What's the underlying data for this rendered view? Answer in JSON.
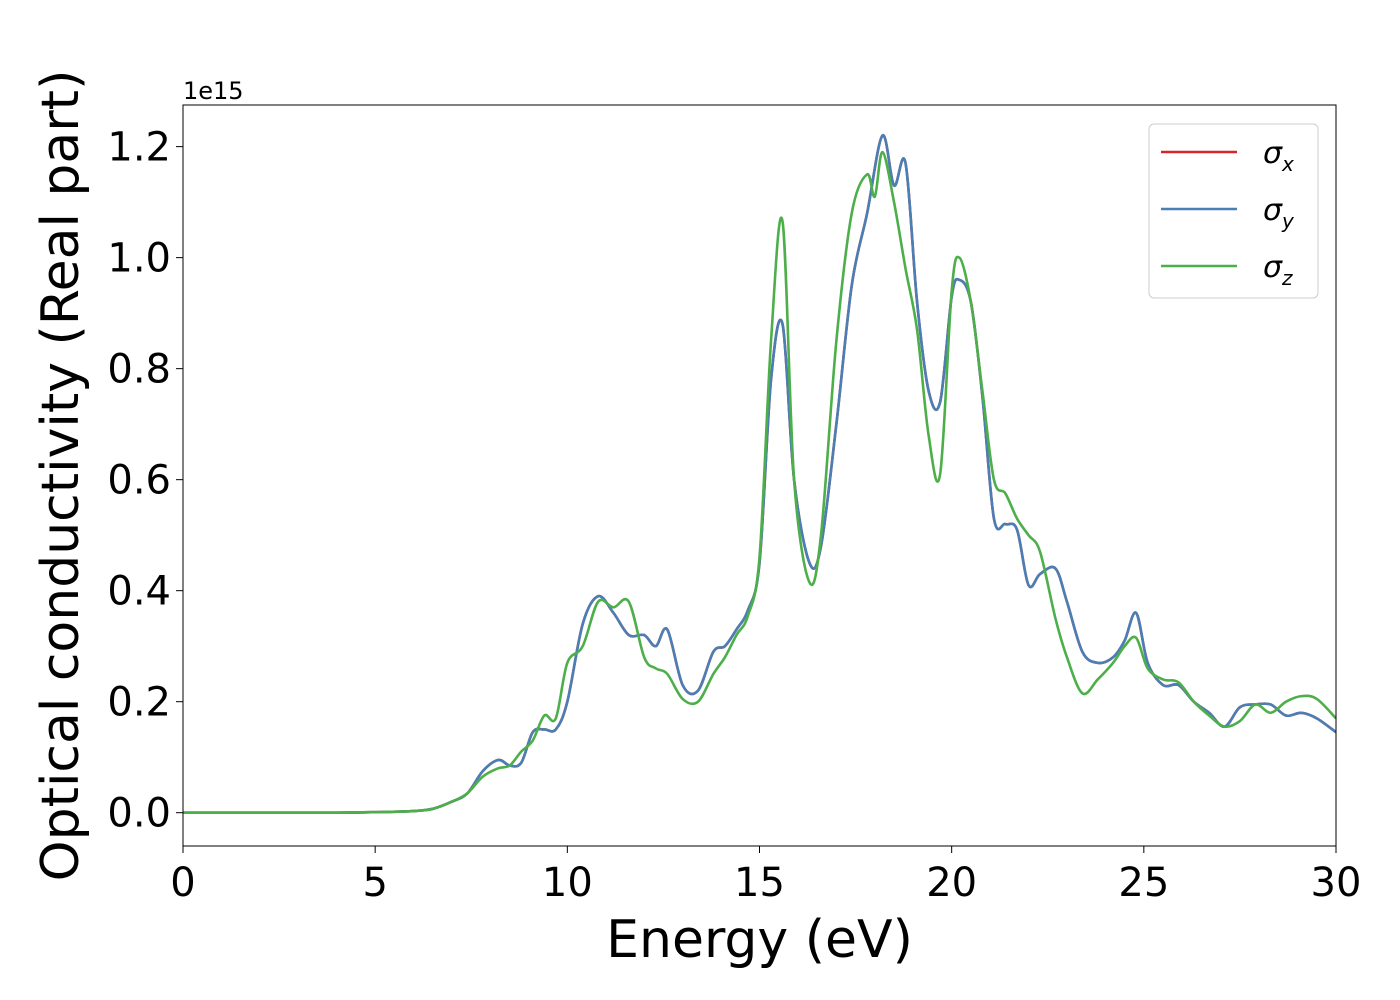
{
  "chart_data": {
    "type": "line",
    "xlabel": "Energy (eV)",
    "ylabel": "Optical conductivity (Real part)",
    "y_offset_label": "1e15",
    "y_scale": 1000000000000000.0,
    "xlim": [
      0,
      30
    ],
    "ylim": [
      -0.06,
      1.275
    ],
    "xticks": [
      0,
      5,
      10,
      15,
      20,
      25,
      30
    ],
    "xtick_labels": [
      "0",
      "5",
      "10",
      "15",
      "20",
      "25",
      "30"
    ],
    "yticks": [
      0.0,
      0.2,
      0.4,
      0.6,
      0.8,
      1.0,
      1.2
    ],
    "ytick_labels": [
      "0.0",
      "0.2",
      "0.4",
      "0.6",
      "0.8",
      "1.0",
      "1.2"
    ],
    "grid": false,
    "legend_position": "top-right",
    "series": [
      {
        "name": "σx",
        "symbol": "σ",
        "subscript": "x",
        "color": "#d62728",
        "x": [
          0,
          2,
          4,
          5,
          6,
          6.5,
          7,
          7.4,
          7.8,
          8.2,
          8.5,
          8.8,
          9.1,
          9.4,
          9.7,
          10,
          10.4,
          10.8,
          11.2,
          11.6,
          12,
          12.3,
          12.6,
          13,
          13.4,
          13.8,
          14.1,
          14.4,
          14.7,
          15,
          15.3,
          15.6,
          15.9,
          16.3,
          16.6,
          17,
          17.4,
          17.8,
          18.2,
          18.5,
          18.8,
          19.1,
          19.4,
          19.7,
          20,
          20.2,
          20.5,
          20.8,
          21.1,
          21.4,
          21.7,
          22,
          22.3,
          22.7,
          23,
          23.4,
          23.8,
          24.2,
          24.5,
          24.8,
          25.1,
          25.5,
          25.9,
          26.3,
          26.7,
          27.1,
          27.5,
          27.9,
          28.3,
          28.7,
          29.1,
          29.5,
          30
        ],
        "values": [
          0,
          0,
          0,
          0.001,
          0.003,
          0.007,
          0.02,
          0.035,
          0.075,
          0.095,
          0.085,
          0.09,
          0.145,
          0.15,
          0.15,
          0.2,
          0.34,
          0.39,
          0.36,
          0.32,
          0.32,
          0.3,
          0.33,
          0.23,
          0.22,
          0.29,
          0.3,
          0.33,
          0.365,
          0.45,
          0.78,
          0.88,
          0.6,
          0.45,
          0.48,
          0.7,
          0.95,
          1.08,
          1.22,
          1.13,
          1.17,
          0.92,
          0.76,
          0.74,
          0.93,
          0.96,
          0.92,
          0.75,
          0.53,
          0.52,
          0.51,
          0.41,
          0.43,
          0.44,
          0.38,
          0.29,
          0.27,
          0.28,
          0.31,
          0.36,
          0.27,
          0.23,
          0.23,
          0.2,
          0.18,
          0.155,
          0.19,
          0.195,
          0.195,
          0.175,
          0.18,
          0.17,
          0.145
        ]
      },
      {
        "name": "σy",
        "symbol": "σ",
        "subscript": "y",
        "color": "#4a7fb5",
        "x": [
          0,
          2,
          4,
          5,
          6,
          6.5,
          7,
          7.4,
          7.8,
          8.2,
          8.5,
          8.8,
          9.1,
          9.4,
          9.7,
          10,
          10.4,
          10.8,
          11.2,
          11.6,
          12,
          12.3,
          12.6,
          13,
          13.4,
          13.8,
          14.1,
          14.4,
          14.7,
          15,
          15.3,
          15.6,
          15.9,
          16.3,
          16.6,
          17,
          17.4,
          17.8,
          18.2,
          18.5,
          18.8,
          19.1,
          19.4,
          19.7,
          20,
          20.2,
          20.5,
          20.8,
          21.1,
          21.4,
          21.7,
          22,
          22.3,
          22.7,
          23,
          23.4,
          23.8,
          24.2,
          24.5,
          24.8,
          25.1,
          25.5,
          25.9,
          26.3,
          26.7,
          27.1,
          27.5,
          27.9,
          28.3,
          28.7,
          29.1,
          29.5,
          30
        ],
        "values": [
          0,
          0,
          0,
          0.001,
          0.003,
          0.007,
          0.02,
          0.035,
          0.075,
          0.095,
          0.085,
          0.09,
          0.145,
          0.15,
          0.15,
          0.2,
          0.34,
          0.39,
          0.36,
          0.32,
          0.32,
          0.3,
          0.33,
          0.23,
          0.22,
          0.29,
          0.3,
          0.33,
          0.365,
          0.45,
          0.78,
          0.88,
          0.6,
          0.45,
          0.48,
          0.7,
          0.95,
          1.08,
          1.22,
          1.13,
          1.17,
          0.92,
          0.76,
          0.74,
          0.93,
          0.96,
          0.92,
          0.75,
          0.53,
          0.52,
          0.51,
          0.41,
          0.43,
          0.44,
          0.38,
          0.29,
          0.27,
          0.28,
          0.31,
          0.36,
          0.27,
          0.23,
          0.23,
          0.2,
          0.18,
          0.155,
          0.19,
          0.195,
          0.195,
          0.175,
          0.18,
          0.17,
          0.145
        ]
      },
      {
        "name": "σz",
        "symbol": "σ",
        "subscript": "z",
        "color": "#4daf4a",
        "x": [
          0,
          2,
          4,
          5,
          6,
          6.5,
          7,
          7.4,
          7.8,
          8.2,
          8.5,
          8.8,
          9.1,
          9.4,
          9.7,
          10,
          10.4,
          10.8,
          11.2,
          11.6,
          12,
          12.3,
          12.6,
          13,
          13.4,
          13.8,
          14.1,
          14.4,
          14.7,
          15,
          15.3,
          15.6,
          15.9,
          16.3,
          16.6,
          17,
          17.4,
          17.8,
          18.0,
          18.2,
          18.5,
          18.8,
          19.1,
          19.4,
          19.7,
          20,
          20.2,
          20.5,
          20.8,
          21.1,
          21.4,
          21.7,
          22,
          22.3,
          22.7,
          23,
          23.4,
          23.8,
          24.2,
          24.5,
          24.8,
          25.1,
          25.5,
          25.9,
          26.3,
          26.7,
          27.1,
          27.5,
          27.9,
          28.3,
          28.7,
          29.1,
          29.5,
          30
        ],
        "values": [
          0,
          0,
          0,
          0.001,
          0.003,
          0.007,
          0.02,
          0.035,
          0.065,
          0.08,
          0.085,
          0.11,
          0.13,
          0.175,
          0.17,
          0.27,
          0.3,
          0.38,
          0.37,
          0.38,
          0.28,
          0.26,
          0.25,
          0.205,
          0.2,
          0.25,
          0.28,
          0.32,
          0.355,
          0.46,
          0.85,
          1.065,
          0.6,
          0.415,
          0.5,
          0.85,
          1.08,
          1.15,
          1.11,
          1.19,
          1.1,
          0.98,
          0.87,
          0.68,
          0.61,
          0.94,
          1.0,
          0.92,
          0.76,
          0.6,
          0.575,
          0.53,
          0.5,
          0.47,
          0.35,
          0.28,
          0.215,
          0.24,
          0.27,
          0.3,
          0.315,
          0.26,
          0.24,
          0.235,
          0.2,
          0.175,
          0.155,
          0.165,
          0.195,
          0.18,
          0.2,
          0.21,
          0.205,
          0.17
        ]
      }
    ]
  }
}
